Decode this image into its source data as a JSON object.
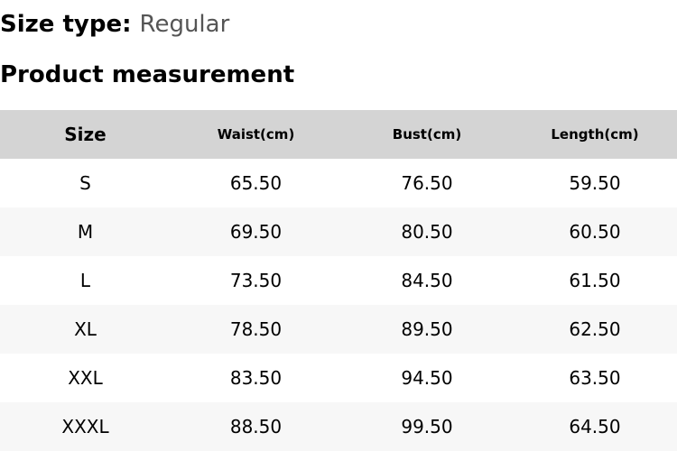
{
  "size_type": {
    "label": "Size type:",
    "value": "Regular"
  },
  "title": "Product measurement",
  "table": {
    "headers": [
      "Size",
      "Waist(cm)",
      "Bust(cm)",
      "Length(cm)"
    ],
    "rows": [
      [
        "S",
        "65.50",
        "76.50",
        "59.50"
      ],
      [
        "M",
        "69.50",
        "80.50",
        "60.50"
      ],
      [
        "L",
        "73.50",
        "84.50",
        "61.50"
      ],
      [
        "XL",
        "78.50",
        "89.50",
        "62.50"
      ],
      [
        "XXL",
        "83.50",
        "94.50",
        "63.50"
      ],
      [
        "XXXL",
        "88.50",
        "99.50",
        "64.50"
      ]
    ]
  }
}
